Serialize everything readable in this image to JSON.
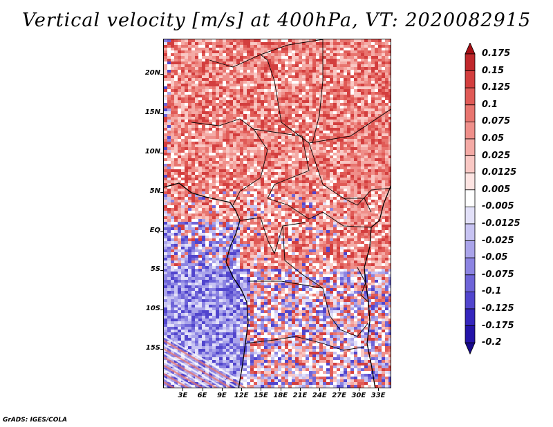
{
  "title": "Vertical velocity [m/s] at 400hPa, VT: 2020082915",
  "footer": "GrADS: IGES/COLA",
  "map": {
    "lat_labels": [
      "20N",
      "15N",
      "10N",
      "5N",
      "EQ",
      "5S",
      "10S",
      "15S"
    ],
    "lat_values": [
      20,
      15,
      10,
      5,
      0,
      -5,
      -10,
      -15
    ],
    "lon_labels": [
      "3E",
      "6E",
      "9E",
      "12E",
      "15E",
      "18E",
      "21E",
      "24E",
      "27E",
      "30E",
      "33E"
    ],
    "lon_values": [
      3,
      6,
      9,
      12,
      15,
      18,
      21,
      24,
      27,
      30,
      33
    ],
    "extent": {
      "lon_min": 0,
      "lon_max": 35,
      "lat_min": -20,
      "lat_max": 24.5
    }
  },
  "colorbar": {
    "labels": [
      "0.175",
      "0.15",
      "0.125",
      "0.1",
      "0.075",
      "0.05",
      "0.025",
      "0.0125",
      "0.005",
      "-0.005",
      "-0.0125",
      "-0.025",
      "-0.05",
      "-0.075",
      "-0.1",
      "-0.125",
      "-0.175",
      "-0.2"
    ],
    "colors": [
      "#a50f15",
      "#c0282c",
      "#d33e3e",
      "#e05a56",
      "#e8756f",
      "#ef8f8a",
      "#f4aaa5",
      "#f9c8c4",
      "#fde4e2",
      "#ffffff",
      "#e2e0f8",
      "#c7c3f2",
      "#aaa4ea",
      "#8c84e2",
      "#6e64d8",
      "#5145cd",
      "#3526bd",
      "#2414a8",
      "#180a8c"
    ]
  },
  "colors": {
    "positive": "#e0463f",
    "negative": "#6e64d8",
    "coast": "#000000"
  }
}
